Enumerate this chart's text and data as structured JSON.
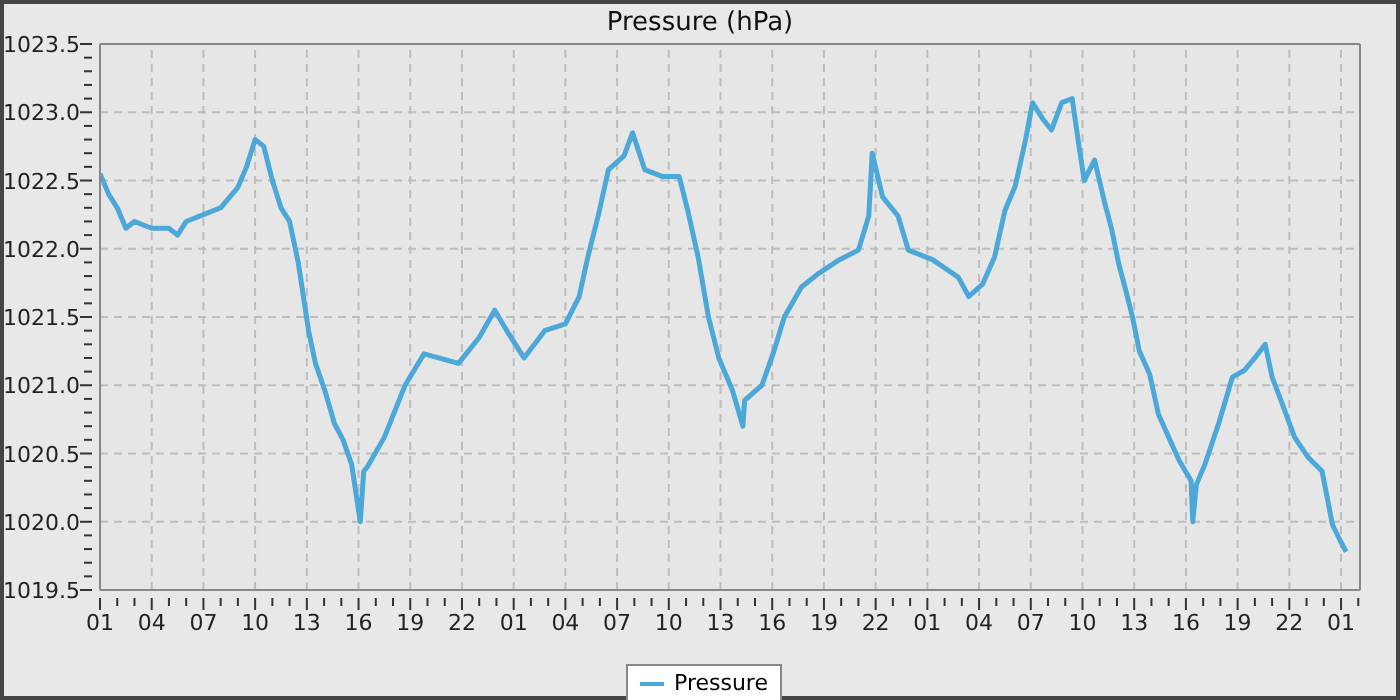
{
  "chart_data": {
    "type": "line",
    "title": "Pressure (hPa)",
    "x": [
      "--01-01T01:00",
      "--01-01T01:30",
      "--01-01T02:00",
      "--01-01T02:30",
      "--01-01T03:00",
      "--01-01T04:00",
      "--01-01T05:00",
      "--01-01T05:30",
      "--01-01T06:00",
      "--01-01T07:00",
      "--01-01T08:00",
      "--01-01T09:00",
      "--01-01T09:30",
      "--01-01T10:00",
      "--01-01T10:30",
      "--01-01T11:00",
      "--01-01T11:30",
      "--01-01T12:00",
      "--01-01T12:30",
      "--01-01T13:06",
      "--01-01T13:30",
      "--01-01T14:03",
      "--01-01T14:36",
      "--01-01T15:06",
      "--01-01T15:36",
      "--01-01T16:06",
      "--01-01T16:18",
      "--01-01T16:30",
      "--01-01T17:30",
      "--01-01T18:42",
      "--01-01T19:48",
      "--01-01T21:48",
      "--01-01T23:00",
      "--01-01T23:54",
      "--01-02T00:36",
      "--01-02T01:36",
      "--01-02T02:48",
      "--01-02T04:00",
      "--01-02T04:48",
      "--01-02T05:18",
      "--01-02T05:54",
      "--01-02T06:30",
      "--01-02T07:24",
      "--01-02T07:54",
      "--01-02T08:36",
      "--01-02T09:36",
      "--01-02T10:36",
      "--01-02T11:06",
      "--01-02T11:42",
      "--01-02T12:18",
      "--01-02T12:54",
      "--01-02T13:42",
      "--01-02T14:18",
      "--01-02T14:24",
      "--01-02T15:24",
      "--01-02T16:06",
      "--01-02T16:42",
      "--01-02T17:42",
      "--01-02T18:42",
      "--01-02T19:54",
      "--01-02T21:00",
      "--01-02T21:36",
      "--01-02T21:48",
      "--01-02T22:24",
      "--01-02T23:18",
      "--01-02T23:54",
      "--01-03T01:18",
      "--01-03T02:48",
      "--01-03T03:24",
      "--01-03T04:12",
      "--01-03T04:54",
      "--01-03T05:30",
      "--01-03T06:06",
      "--01-03T06:42",
      "--01-03T07:06",
      "--01-03T07:42",
      "--01-03T08:12",
      "--01-03T08:48",
      "--01-03T09:24",
      "--01-03T09:48",
      "--01-03T10:06",
      "--01-03T10:42",
      "--01-03T11:18",
      "--01-03T11:42",
      "--01-03T12:06",
      "--01-03T12:30",
      "--01-03T12:54",
      "--01-03T13:18",
      "--01-03T13:54",
      "--01-03T14:24",
      "--01-03T15:00",
      "--01-03T15:36",
      "--01-03T16:18",
      "--01-03T16:24",
      "--01-03T16:36",
      "--01-03T17:06",
      "--01-03T17:54",
      "--01-03T18:42",
      "--01-03T19:24",
      "--01-03T20:00",
      "--01-03T20:36",
      "--01-03T21:00",
      "--01-03T21:36",
      "--01-03T22:18",
      "--01-03T23:06",
      "--01-03T23:54",
      "--01-04T00:30",
      "--01-04T01:00",
      "--01-04T01:18"
    ],
    "series": [
      {
        "name": "Pressure",
        "color": "#4ca8d8",
        "values": [
          1022.55,
          1022.4,
          1022.3,
          1022.15,
          1022.2,
          1022.15,
          1022.15,
          1022.1,
          1022.2,
          1022.25,
          1022.3,
          1022.45,
          1022.6,
          1022.8,
          1022.75,
          1022.5,
          1022.3,
          1022.2,
          1021.9,
          1021.4,
          1021.16,
          1020.96,
          1020.72,
          1020.6,
          1020.42,
          1020.0,
          1020.37,
          1020.4,
          1020.62,
          1021.0,
          1021.23,
          1021.16,
          1021.35,
          1021.55,
          1021.4,
          1021.2,
          1021.4,
          1021.45,
          1021.65,
          1021.94,
          1022.24,
          1022.58,
          1022.68,
          1022.85,
          1022.58,
          1022.53,
          1022.53,
          1022.28,
          1021.94,
          1021.5,
          1021.2,
          1020.96,
          1020.7,
          1020.89,
          1021.0,
          1021.25,
          1021.5,
          1021.72,
          1021.82,
          1021.92,
          1021.99,
          1022.24,
          1022.7,
          1022.38,
          1022.24,
          1021.99,
          1021.92,
          1021.79,
          1021.65,
          1021.74,
          1021.94,
          1022.28,
          1022.46,
          1022.8,
          1023.07,
          1022.95,
          1022.87,
          1023.07,
          1023.1,
          1022.75,
          1022.5,
          1022.65,
          1022.33,
          1022.14,
          1021.89,
          1021.7,
          1021.5,
          1021.25,
          1021.08,
          1020.79,
          1020.62,
          1020.45,
          1020.3,
          1020.0,
          1020.27,
          1020.42,
          1020.72,
          1021.06,
          1021.11,
          1021.2,
          1021.3,
          1021.06,
          1020.86,
          1020.62,
          1020.47,
          1020.37,
          1019.98,
          1019.85,
          1019.78
        ]
      }
    ],
    "xlim": [
      "--01-01T01:00",
      "--01-04T02:06"
    ],
    "xticks": [
      {
        "value": "--01-01T01:00",
        "label": "01"
      },
      {
        "value": "--01-01T02:00",
        "label": null
      },
      {
        "value": "--01-01T03:00",
        "label": null
      },
      {
        "value": "--01-01T04:00",
        "label": "04"
      },
      {
        "value": "--01-01T05:00",
        "label": null
      },
      {
        "value": "--01-01T06:00",
        "label": null
      },
      {
        "value": "--01-01T07:00",
        "label": "07"
      },
      {
        "value": "--01-01T08:00",
        "label": null
      },
      {
        "value": "--01-01T09:00",
        "label": null
      },
      {
        "value": "--01-01T10:00",
        "label": "10"
      },
      {
        "value": "--01-01T11:00",
        "label": null
      },
      {
        "value": "--01-01T12:00",
        "label": null
      },
      {
        "value": "--01-01T13:00",
        "label": "13"
      },
      {
        "value": "--01-01T14:00",
        "label": null
      },
      {
        "value": "--01-01T15:00",
        "label": null
      },
      {
        "value": "--01-01T16:00",
        "label": "16"
      },
      {
        "value": "--01-01T17:00",
        "label": null
      },
      {
        "value": "--01-01T18:00",
        "label": null
      },
      {
        "value": "--01-01T19:00",
        "label": "19"
      },
      {
        "value": "--01-01T20:00",
        "label": null
      },
      {
        "value": "--01-01T21:00",
        "label": null
      },
      {
        "value": "--01-01T22:00",
        "label": "22"
      },
      {
        "value": "--01-01T23:00",
        "label": null
      },
      {
        "value": "--01-02T00:00",
        "label": null
      },
      {
        "value": "--01-02T01:00",
        "label": "01"
      },
      {
        "value": "--01-02T02:00",
        "label": null
      },
      {
        "value": "--01-02T03:00",
        "label": null
      },
      {
        "value": "--01-02T04:00",
        "label": "04"
      },
      {
        "value": "--01-02T05:00",
        "label": null
      },
      {
        "value": "--01-02T06:00",
        "label": null
      },
      {
        "value": "--01-02T07:00",
        "label": "07"
      },
      {
        "value": "--01-02T08:00",
        "label": null
      },
      {
        "value": "--01-02T09:00",
        "label": null
      },
      {
        "value": "--01-02T10:00",
        "label": "10"
      },
      {
        "value": "--01-02T11:00",
        "label": null
      },
      {
        "value": "--01-02T12:00",
        "label": null
      },
      {
        "value": "--01-02T13:00",
        "label": "13"
      },
      {
        "value": "--01-02T14:00",
        "label": null
      },
      {
        "value": "--01-02T15:00",
        "label": null
      },
      {
        "value": "--01-02T16:00",
        "label": "16"
      },
      {
        "value": "--01-02T17:00",
        "label": null
      },
      {
        "value": "--01-02T18:00",
        "label": null
      },
      {
        "value": "--01-02T19:00",
        "label": "19"
      },
      {
        "value": "--01-02T20:00",
        "label": null
      },
      {
        "value": "--01-02T21:00",
        "label": null
      },
      {
        "value": "--01-02T22:00",
        "label": "22"
      },
      {
        "value": "--01-02T23:00",
        "label": null
      },
      {
        "value": "--01-03T00:00",
        "label": null
      },
      {
        "value": "--01-03T01:00",
        "label": "01"
      },
      {
        "value": "--01-03T02:00",
        "label": null
      },
      {
        "value": "--01-03T03:00",
        "label": null
      },
      {
        "value": "--01-03T04:00",
        "label": "04"
      },
      {
        "value": "--01-03T05:00",
        "label": null
      },
      {
        "value": "--01-03T06:00",
        "label": null
      },
      {
        "value": "--01-03T07:00",
        "label": "07"
      },
      {
        "value": "--01-03T08:00",
        "label": null
      },
      {
        "value": "--01-03T09:00",
        "label": null
      },
      {
        "value": "--01-03T10:00",
        "label": "10"
      },
      {
        "value": "--01-03T11:00",
        "label": null
      },
      {
        "value": "--01-03T12:00",
        "label": null
      },
      {
        "value": "--01-03T13:00",
        "label": "13"
      },
      {
        "value": "--01-03T14:00",
        "label": null
      },
      {
        "value": "--01-03T15:00",
        "label": null
      },
      {
        "value": "--01-03T16:00",
        "label": "16"
      },
      {
        "value": "--01-03T17:00",
        "label": null
      },
      {
        "value": "--01-03T18:00",
        "label": null
      },
      {
        "value": "--01-03T19:00",
        "label": "19"
      },
      {
        "value": "--01-03T20:00",
        "label": null
      },
      {
        "value": "--01-03T21:00",
        "label": null
      },
      {
        "value": "--01-03T22:00",
        "label": "22"
      },
      {
        "value": "--01-03T23:00",
        "label": null
      },
      {
        "value": "--01-04T00:00",
        "label": null
      },
      {
        "value": "--01-04T01:00",
        "label": "01"
      },
      {
        "value": "--01-04T02:00",
        "label": null
      }
    ],
    "ylim": [
      1019.5,
      1023.5
    ],
    "yticks": [
      {
        "value": 1019.5,
        "label": "1019.5"
      },
      {
        "value": 1019.6,
        "label": null
      },
      {
        "value": 1019.7,
        "label": null
      },
      {
        "value": 1019.8,
        "label": null
      },
      {
        "value": 1019.9,
        "label": null
      },
      {
        "value": 1020,
        "label": "1020.0"
      },
      {
        "value": 1020.1,
        "label": null
      },
      {
        "value": 1020.2,
        "label": null
      },
      {
        "value": 1020.3,
        "label": null
      },
      {
        "value": 1020.4,
        "label": null
      },
      {
        "value": 1020.5,
        "label": "1020.5"
      },
      {
        "value": 1020.6,
        "label": null
      },
      {
        "value": 1020.7,
        "label": null
      },
      {
        "value": 1020.8,
        "label": null
      },
      {
        "value": 1020.9,
        "label": null
      },
      {
        "value": 1021,
        "label": "1021.0"
      },
      {
        "value": 1021.1,
        "label": null
      },
      {
        "value": 1021.2,
        "label": null
      },
      {
        "value": 1021.3,
        "label": null
      },
      {
        "value": 1021.4,
        "label": null
      },
      {
        "value": 1021.5,
        "label": "1021.5"
      },
      {
        "value": 1021.6,
        "label": null
      },
      {
        "value": 1021.7,
        "label": null
      },
      {
        "value": 1021.8,
        "label": null
      },
      {
        "value": 1021.9,
        "label": null
      },
      {
        "value": 1022,
        "label": "1022.0"
      },
      {
        "value": 1022.1,
        "label": null
      },
      {
        "value": 1022.2,
        "label": null
      },
      {
        "value": 1022.3,
        "label": null
      },
      {
        "value": 1022.4,
        "label": null
      },
      {
        "value": 1022.5,
        "label": "1022.5"
      },
      {
        "value": 1022.6,
        "label": null
      },
      {
        "value": 1022.7,
        "label": null
      },
      {
        "value": 1022.8,
        "label": null
      },
      {
        "value": 1022.9,
        "label": null
      },
      {
        "value": 1023,
        "label": "1023.0"
      },
      {
        "value": 1023.1,
        "label": null
      },
      {
        "value": 1023.2,
        "label": null
      },
      {
        "value": 1023.3,
        "label": null
      },
      {
        "value": 1023.4,
        "label": null
      },
      {
        "value": 1023.5,
        "label": "1023.5"
      }
    ],
    "grid": true,
    "legend": "bottom",
    "marker": "none",
    "line_style": "solid"
  }
}
